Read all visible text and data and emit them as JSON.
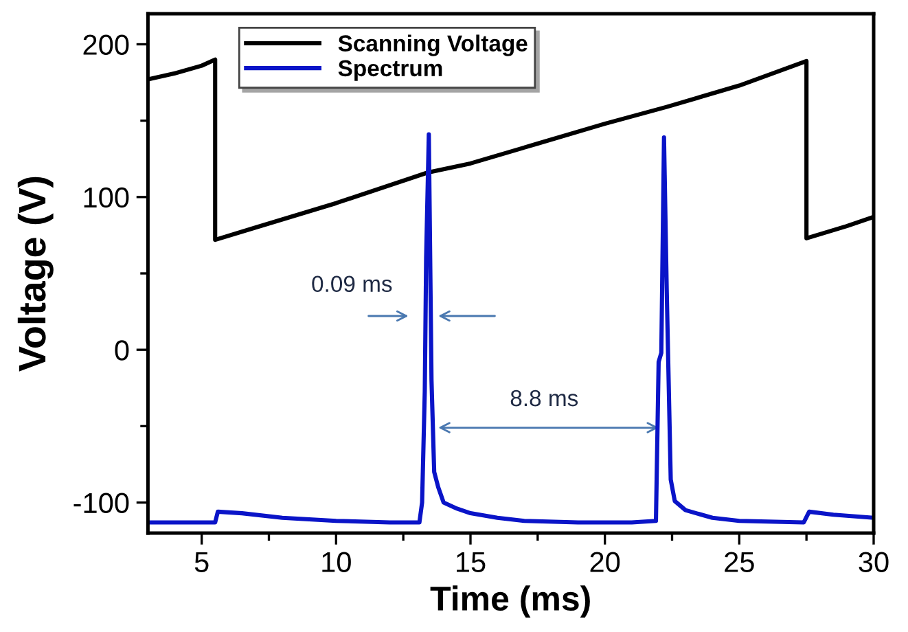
{
  "chart_data": {
    "type": "line",
    "xlabel": "Time (ms)",
    "ylabel": "Voltage (V)",
    "xlim": [
      3,
      30
    ],
    "ylim": [
      -120,
      220
    ],
    "xticks": [
      5,
      {
        "value": 7.5,
        "label": null
      },
      10,
      {
        "value": 12.5,
        "label": null
      },
      15,
      {
        "value": 17.5,
        "label": null
      },
      20,
      {
        "value": 22.5,
        "label": null
      },
      25,
      {
        "value": 27.5,
        "label": null
      },
      30
    ],
    "yticks": [
      -100,
      {
        "value": -50,
        "label": null
      },
      0,
      {
        "value": 50,
        "label": null
      },
      100,
      {
        "value": 150,
        "label": null
      },
      200
    ],
    "grid": false,
    "legend": "top left",
    "marker": "none",
    "line_style": "solid",
    "series": [
      {
        "name": "Scanning Voltage",
        "color": "#000000",
        "x": [
          3,
          4,
          5,
          5.5,
          5.5,
          7,
          10,
          13.4,
          15,
          17.5,
          20,
          22.3,
          25,
          27.5,
          27.5,
          29,
          30
        ],
        "values": [
          177,
          181,
          186,
          190,
          72,
          80,
          96,
          116,
          122,
          135,
          148,
          159,
          173,
          189,
          73,
          81,
          87
        ]
      },
      {
        "name": "Spectrum",
        "color": "#0a14c8",
        "x": [
          3,
          4,
          5,
          5.5,
          5.6,
          6.5,
          8,
          10,
          12,
          13.1,
          13.2,
          13.3,
          13.35,
          13.45,
          13.55,
          13.65,
          13.8,
          14,
          14.5,
          15,
          16,
          17,
          19,
          21,
          21.9,
          22.0,
          22.1,
          22.2,
          22.3,
          22.45,
          22.6,
          23,
          24,
          25,
          27.4,
          27.6,
          28.5,
          30
        ],
        "values": [
          -113,
          -113,
          -113,
          -113,
          -106,
          -107,
          -110,
          -112,
          -113,
          -113,
          -100,
          -27,
          60,
          141,
          -20,
          -80,
          -90,
          -100,
          -104,
          -107,
          -110,
          -112,
          -113,
          -113,
          -112,
          -8,
          -2,
          139,
          40,
          -85,
          -99,
          -105,
          -110,
          -112,
          -113,
          -106,
          -108,
          -110
        ]
      }
    ],
    "annotations": [
      "0.09 ms",
      "8.8 ms"
    ]
  }
}
